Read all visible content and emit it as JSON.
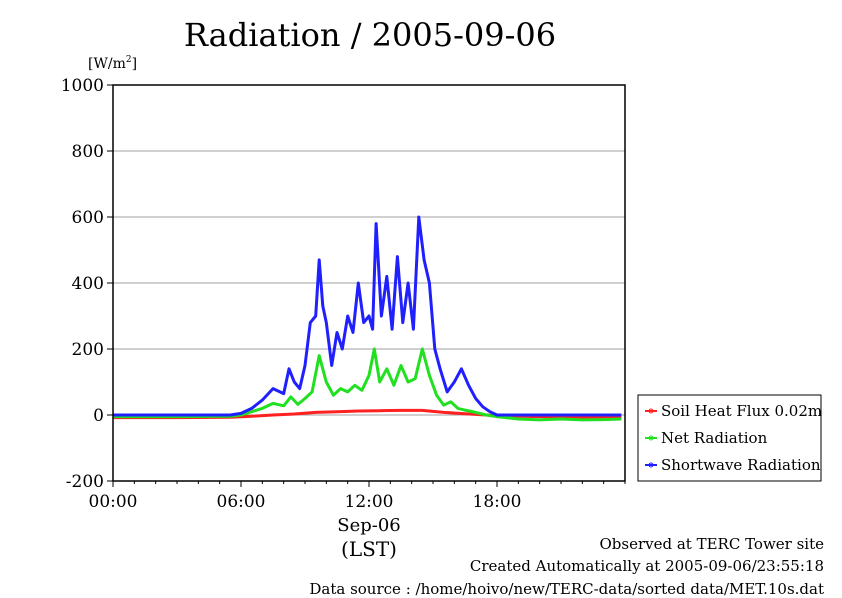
{
  "chart_data": {
    "type": "line",
    "title": "Radiation / 2005-09-06",
    "ylabel_unit": "[W/m",
    "ylabel_sup": "2",
    "ylabel_close": "]",
    "xlabel_date": "Sep-06",
    "xlabel_tz": "(LST)",
    "xlim": [
      "00:00",
      "24:00"
    ],
    "ylim": [
      -200,
      1000
    ],
    "yticks": [
      -200,
      0,
      200,
      400,
      600,
      800,
      1000
    ],
    "ytick_labels": [
      "-200",
      "0",
      "200",
      "400",
      "600",
      "800",
      "1000"
    ],
    "xticks": [
      "00:00",
      "06:00",
      "12:00",
      "18:00"
    ],
    "grid": "horizontal",
    "legend_position": "right",
    "series": [
      {
        "name": "Soil Heat Flux 0.02m",
        "color": "#ff2020",
        "x": [
          "00:00",
          "03:00",
          "05:30",
          "06:30",
          "07:30",
          "08:30",
          "09:30",
          "10:30",
          "11:30",
          "12:30",
          "13:30",
          "14:30",
          "15:30",
          "16:30",
          "17:30",
          "18:30",
          "20:00",
          "22:00",
          "23:50"
        ],
        "y": [
          -8,
          -8,
          -7,
          -4,
          0,
          3,
          8,
          10,
          12,
          13,
          14,
          14,
          8,
          4,
          0,
          -3,
          -5,
          -7,
          -8
        ]
      },
      {
        "name": "Net Radiation",
        "color": "#20e020",
        "x": [
          "00:00",
          "03:00",
          "05:30",
          "06:00",
          "06:30",
          "07:00",
          "07:30",
          "08:00",
          "08:20",
          "08:40",
          "09:00",
          "09:20",
          "09:40",
          "10:00",
          "10:20",
          "10:40",
          "11:00",
          "11:20",
          "11:40",
          "12:00",
          "12:15",
          "12:30",
          "12:50",
          "13:10",
          "13:30",
          "13:50",
          "14:10",
          "14:30",
          "14:50",
          "15:10",
          "15:30",
          "15:50",
          "16:10",
          "16:30",
          "17:00",
          "17:30",
          "18:00",
          "19:00",
          "20:00",
          "21:00",
          "22:00",
          "23:00",
          "23:50"
        ],
        "y": [
          -5,
          -5,
          -4,
          0,
          10,
          20,
          35,
          28,
          55,
          32,
          50,
          70,
          180,
          100,
          60,
          80,
          70,
          90,
          75,
          120,
          200,
          100,
          140,
          90,
          150,
          100,
          110,
          200,
          120,
          60,
          30,
          40,
          20,
          15,
          8,
          0,
          -5,
          -12,
          -15,
          -12,
          -15,
          -14,
          -12
        ]
      },
      {
        "name": "Shortwave Radiation",
        "color": "#2020ff",
        "x": [
          "00:00",
          "03:00",
          "05:30",
          "06:00",
          "06:30",
          "07:00",
          "07:30",
          "08:00",
          "08:15",
          "08:30",
          "08:45",
          "09:00",
          "09:15",
          "09:30",
          "09:40",
          "09:50",
          "10:00",
          "10:15",
          "10:30",
          "10:45",
          "11:00",
          "11:15",
          "11:30",
          "11:45",
          "12:00",
          "12:10",
          "12:20",
          "12:35",
          "12:50",
          "13:05",
          "13:20",
          "13:35",
          "13:50",
          "14:05",
          "14:20",
          "14:35",
          "14:50",
          "15:05",
          "15:20",
          "15:40",
          "16:00",
          "16:20",
          "16:40",
          "17:00",
          "17:20",
          "17:40",
          "18:00",
          "19:00",
          "21:00",
          "23:50"
        ],
        "y": [
          0,
          0,
          0,
          5,
          20,
          45,
          80,
          65,
          140,
          100,
          80,
          150,
          280,
          300,
          470,
          330,
          280,
          150,
          250,
          200,
          300,
          250,
          400,
          280,
          300,
          260,
          580,
          300,
          420,
          260,
          480,
          280,
          400,
          260,
          600,
          470,
          400,
          200,
          140,
          70,
          100,
          140,
          90,
          50,
          25,
          10,
          0,
          0,
          0,
          0
        ]
      }
    ]
  },
  "footer": {
    "line1": "Observed at TERC Tower site",
    "line2": "Created Automatically at 2005-09-06/23:55:18",
    "line3": "Data source : /home/hoivo/new/TERC-data/sorted data/MET.10s.dat"
  }
}
